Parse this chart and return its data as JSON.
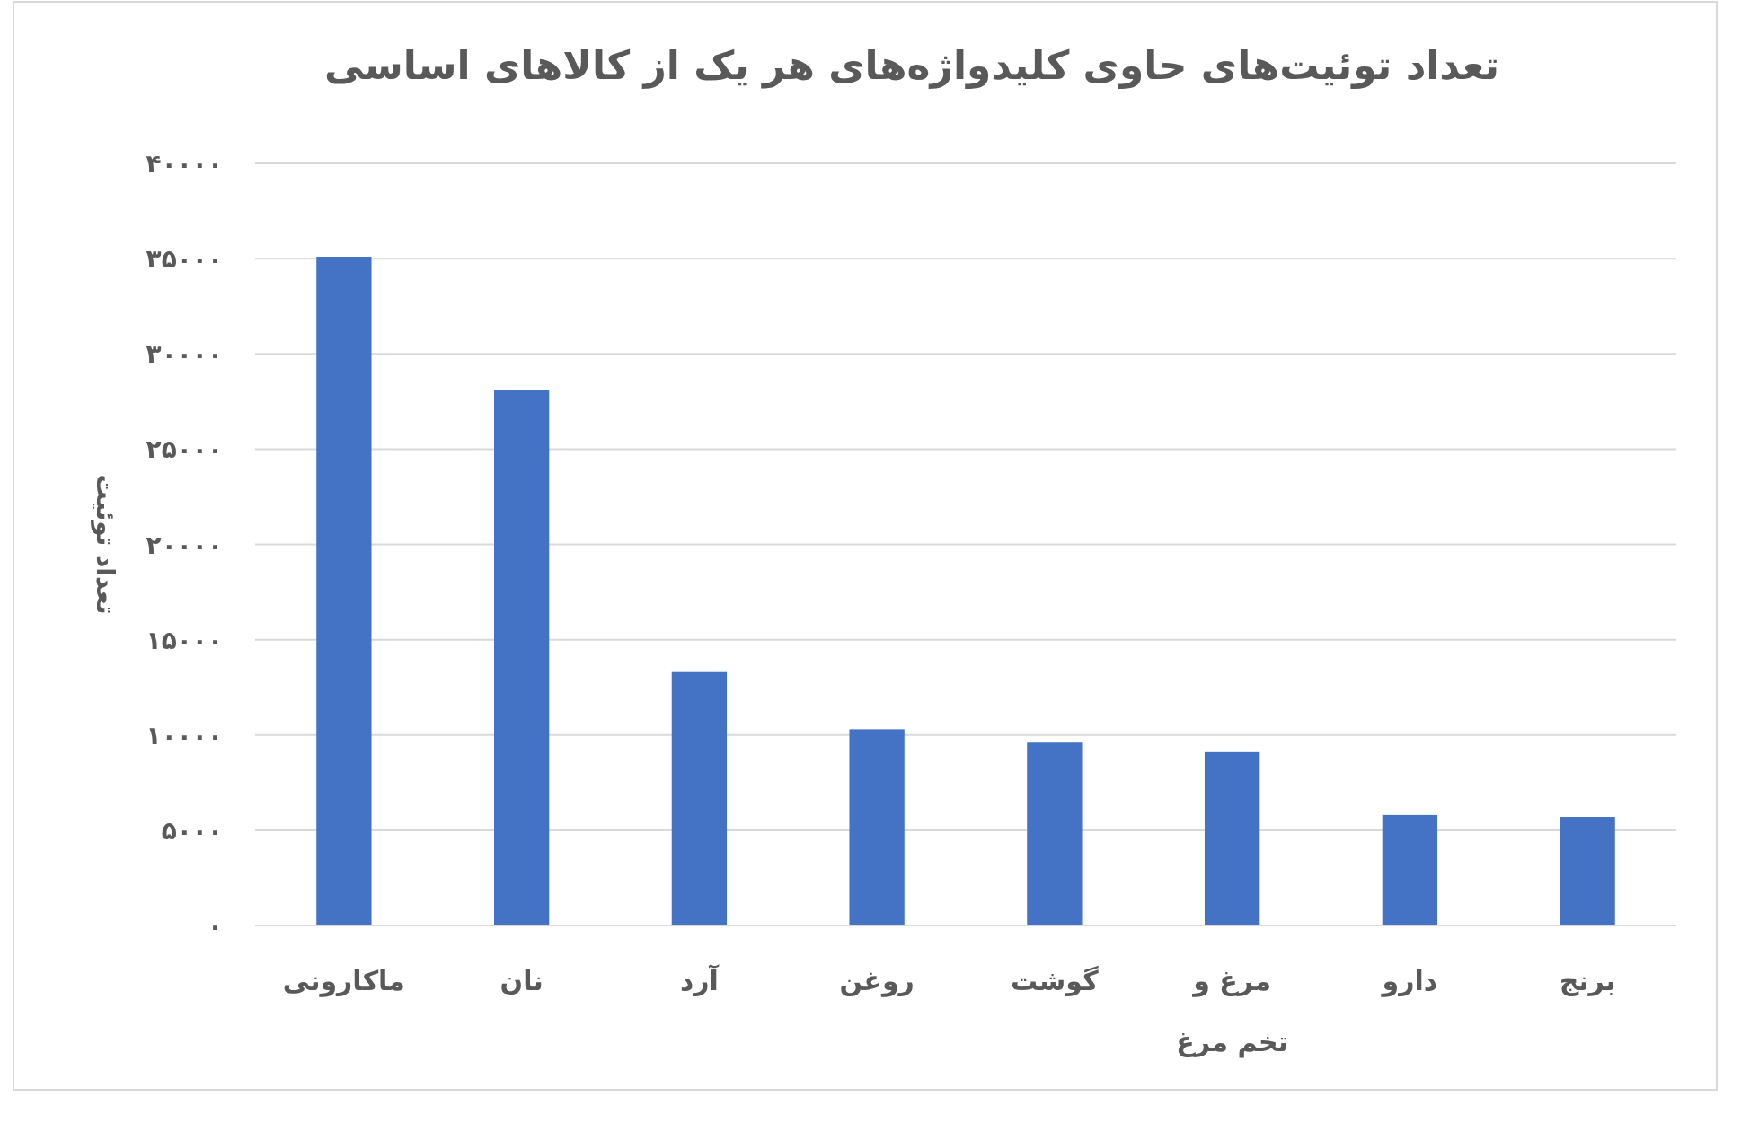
{
  "chart_data": {
    "type": "bar",
    "title": "تعداد توئیت‌های حاوی کلیدواژه‌های هر یک از کالاهای اساسی",
    "ylabel": "تعداد توئیت",
    "categories": [
      "ماکارونی",
      "نان",
      "آرد",
      "روغن",
      "گوشت",
      "مرغ و تخم مرغ",
      "دارو",
      "برنج"
    ],
    "values": [
      35100,
      28100,
      13300,
      10300,
      9600,
      9100,
      5800,
      5700
    ],
    "color": "#4472c4",
    "ylim": [
      0,
      40000
    ],
    "yticks": [
      {
        "value": 0,
        "label": "۰"
      },
      {
        "value": 5000,
        "label": "۵۰۰۰"
      },
      {
        "value": 10000,
        "label": "۱۰۰۰۰"
      },
      {
        "value": 15000,
        "label": "۱۵۰۰۰"
      },
      {
        "value": 20000,
        "label": "۲۰۰۰۰"
      },
      {
        "value": 25000,
        "label": "۲۵۰۰۰"
      },
      {
        "value": 30000,
        "label": "۳۰۰۰۰"
      },
      {
        "value": 35000,
        "label": "۳۵۰۰۰"
      },
      {
        "value": 40000,
        "label": "۴۰۰۰۰"
      }
    ],
    "grid": "y"
  }
}
